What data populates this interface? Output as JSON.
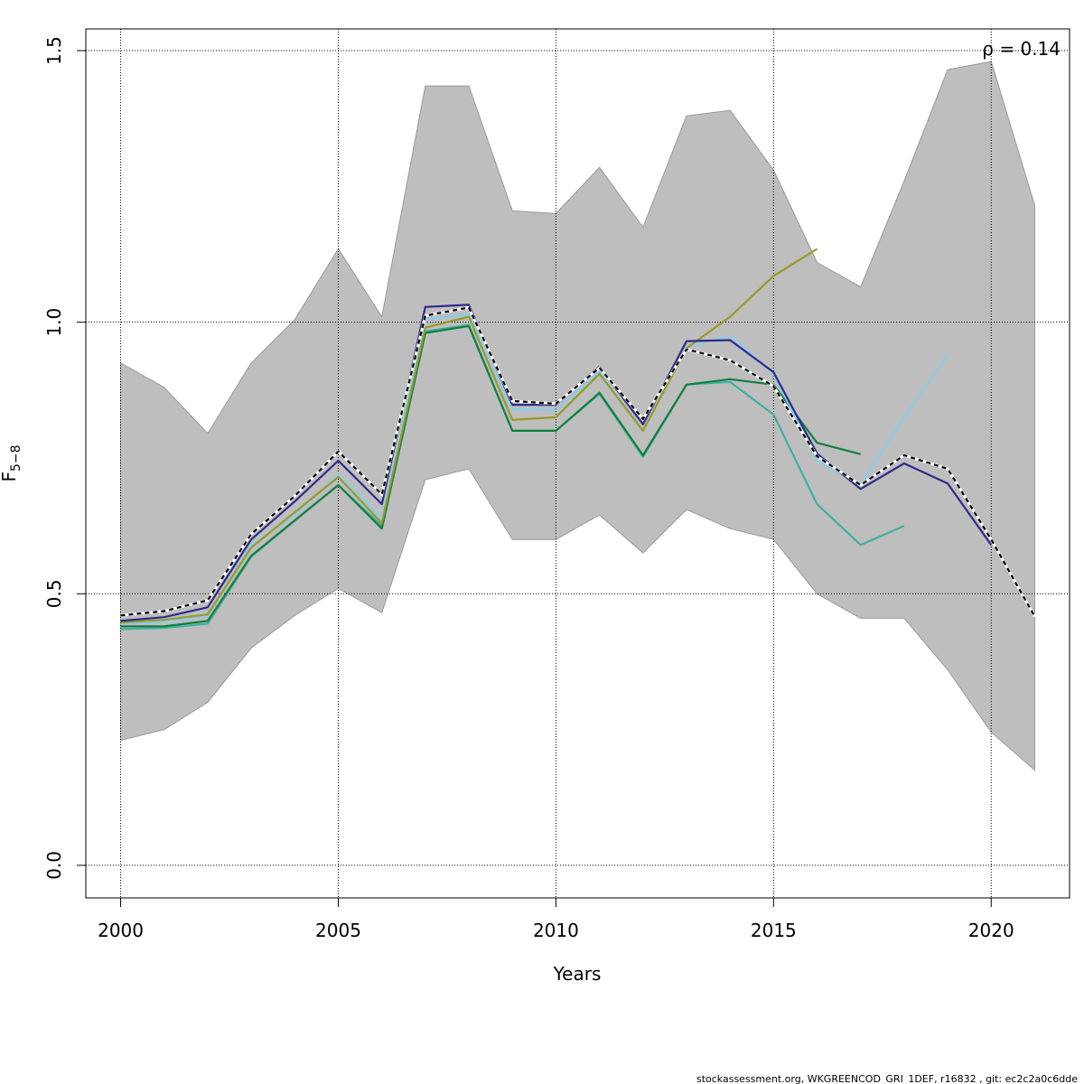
{
  "chart_data": {
    "type": "line",
    "xlabel": "Years",
    "ylabel_main": "F",
    "ylabel_sub": "5−8",
    "annotation": "ρ = 0.14",
    "footer": "stockassessment.org, WKGREENCOD_GRI_1DEF, r16832 , git: ec2c2a0c6dde",
    "xlim": [
      1999.2,
      2021.8
    ],
    "ylim": [
      -0.06,
      1.54
    ],
    "x_ticks": [
      2000,
      2005,
      2010,
      2015,
      2020
    ],
    "y_ticks": [
      0.0,
      0.5,
      1.0,
      1.5
    ],
    "x_tick_labels": [
      "2000",
      "2005",
      "2010",
      "2015",
      "2020"
    ],
    "y_tick_labels": [
      "0.0",
      "0.5",
      "1.0",
      "1.5"
    ],
    "grid": true,
    "band": {
      "color": "#bebebe",
      "x": [
        2000,
        2001,
        2002,
        2003,
        2004,
        2005,
        2006,
        2007,
        2008,
        2009,
        2010,
        2011,
        2012,
        2013,
        2014,
        2015,
        2016,
        2017,
        2018,
        2019,
        2020,
        2021
      ],
      "lower": [
        0.23,
        0.25,
        0.3,
        0.4,
        0.46,
        0.51,
        0.465,
        0.71,
        0.73,
        0.6,
        0.6,
        0.645,
        0.575,
        0.655,
        0.62,
        0.6,
        0.5,
        0.455,
        0.455,
        0.36,
        0.245,
        0.175
      ],
      "upper": [
        0.925,
        0.88,
        0.795,
        0.925,
        1.005,
        1.135,
        1.01,
        1.435,
        1.435,
        1.205,
        1.2,
        1.285,
        1.175,
        1.38,
        1.39,
        1.28,
        1.11,
        1.065,
        1.26,
        1.465,
        1.48,
        1.215
      ]
    },
    "series": [
      {
        "color": "#3eb1a1",
        "dashed": false,
        "x": [
          2000,
          2001,
          2002,
          2003,
          2004,
          2005,
          2006,
          2007,
          2008,
          2009,
          2010,
          2011,
          2012,
          2013,
          2014,
          2015,
          2016,
          2017,
          2018
        ],
        "y": [
          0.435,
          0.437,
          0.445,
          0.568,
          0.635,
          0.7,
          0.625,
          0.983,
          0.995,
          0.8,
          0.8,
          0.868,
          0.752,
          0.885,
          0.89,
          0.83,
          0.665,
          0.59,
          0.625
        ]
      },
      {
        "color": "#137f3f",
        "dashed": false,
        "x": [
          2000,
          2001,
          2002,
          2003,
          2004,
          2005,
          2006,
          2007,
          2008,
          2009,
          2010,
          2011,
          2012,
          2013,
          2014,
          2015,
          2016,
          2017
        ],
        "y": [
          0.44,
          0.44,
          0.45,
          0.57,
          0.635,
          0.7,
          0.62,
          0.98,
          0.993,
          0.8,
          0.8,
          0.87,
          0.755,
          0.885,
          0.895,
          0.885,
          0.778,
          0.757
        ]
      },
      {
        "color": "#87ceeb",
        "dashed": false,
        "x": [
          2000,
          2001,
          2002,
          2003,
          2004,
          2005,
          2006,
          2007,
          2008,
          2009,
          2010,
          2011,
          2012,
          2013,
          2014,
          2015,
          2016,
          2017,
          2018,
          2019
        ],
        "y": [
          0.445,
          0.448,
          0.46,
          0.59,
          0.645,
          0.72,
          0.638,
          1.005,
          1.015,
          0.84,
          0.838,
          0.91,
          0.8,
          0.955,
          0.975,
          0.905,
          0.745,
          0.7,
          0.825,
          0.94
        ]
      },
      {
        "color": "#9a9a2a",
        "dashed": false,
        "x": [
          2000,
          2001,
          2002,
          2003,
          2004,
          2005,
          2006,
          2007,
          2008,
          2009,
          2010,
          2011,
          2012,
          2013,
          2014,
          2015,
          2016
        ],
        "y": [
          0.447,
          0.452,
          0.462,
          0.585,
          0.65,
          0.715,
          0.63,
          0.99,
          1.01,
          0.82,
          0.825,
          0.905,
          0.8,
          0.952,
          1.01,
          1.085,
          1.135
        ]
      },
      {
        "color": "#2e2a8c",
        "dashed": false,
        "x": [
          2000,
          2001,
          2002,
          2003,
          2004,
          2005,
          2006,
          2007,
          2008,
          2009,
          2010,
          2011,
          2012,
          2013,
          2014,
          2015,
          2016,
          2017,
          2018,
          2019,
          2020
        ],
        "y": [
          0.45,
          0.457,
          0.475,
          0.6,
          0.67,
          0.745,
          0.665,
          1.028,
          1.032,
          0.848,
          0.848,
          0.918,
          0.812,
          0.965,
          0.967,
          0.908,
          0.758,
          0.693,
          0.74,
          0.703,
          0.59
        ]
      },
      {
        "color": "#000000",
        "dashed": true,
        "x": [
          2000,
          2001,
          2002,
          2003,
          2004,
          2005,
          2006,
          2007,
          2008,
          2009,
          2010,
          2011,
          2012,
          2013,
          2014,
          2015,
          2016,
          2017,
          2018,
          2019,
          2020,
          2021
        ],
        "y": [
          0.46,
          0.468,
          0.488,
          0.61,
          0.68,
          0.762,
          0.683,
          1.012,
          1.027,
          0.855,
          0.85,
          0.916,
          0.822,
          0.95,
          0.93,
          0.882,
          0.753,
          0.7,
          0.755,
          0.73,
          0.6,
          0.458
        ]
      }
    ]
  }
}
